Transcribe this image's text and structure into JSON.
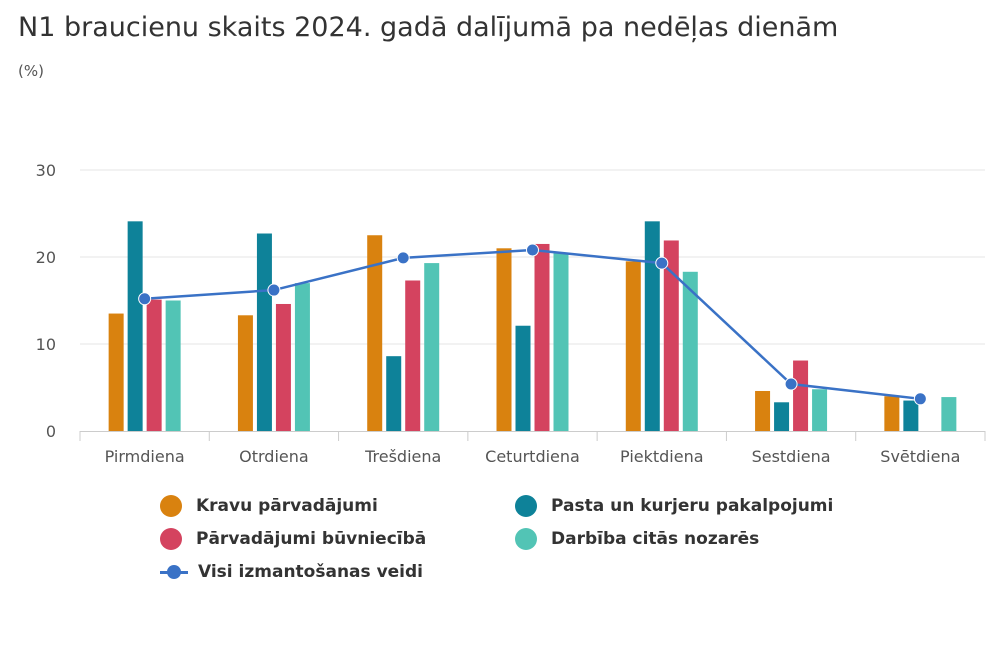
{
  "chart_data": {
    "type": "bar",
    "title": "N1 braucienu skaits 2024. gadā dalījumā pa nedēļas dienām",
    "unit": "(%)",
    "categories": [
      "Pirmdiena",
      "Otrdiena",
      "Trešdiena",
      "Ceturtdiena",
      "Piektdiena",
      "Sestdiena",
      "Svētdiena"
    ],
    "ylim": [
      0,
      30
    ],
    "yticks": [
      0,
      10,
      20,
      30
    ],
    "grid": true,
    "legend_position": "bottom",
    "series": [
      {
        "name": "Kravu pārvadājumi",
        "type": "bar",
        "color": "#D9820F",
        "values": [
          13.5,
          13.3,
          22.5,
          21.0,
          19.5,
          4.6,
          4.0
        ]
      },
      {
        "name": "Pasta un kurjeru pakalpojumi",
        "type": "bar",
        "color": "#0E8299",
        "values": [
          24.1,
          22.7,
          8.6,
          12.1,
          24.1,
          3.3,
          3.5
        ]
      },
      {
        "name": "Pārvadājumi būvniecībā",
        "type": "bar",
        "color": "#D4435F",
        "values": [
          15.1,
          14.6,
          17.3,
          21.5,
          21.9,
          8.1,
          0
        ]
      },
      {
        "name": "Darbība citās nozarēs",
        "type": "bar",
        "color": "#52C4B5",
        "values": [
          15.0,
          17.0,
          19.3,
          20.5,
          18.3,
          4.8,
          3.9
        ]
      },
      {
        "name": "Visi izmantošanas veidi",
        "type": "line",
        "color": "#3A72C6",
        "values": [
          15.2,
          16.2,
          19.9,
          20.8,
          19.3,
          5.4,
          3.7
        ]
      }
    ]
  }
}
